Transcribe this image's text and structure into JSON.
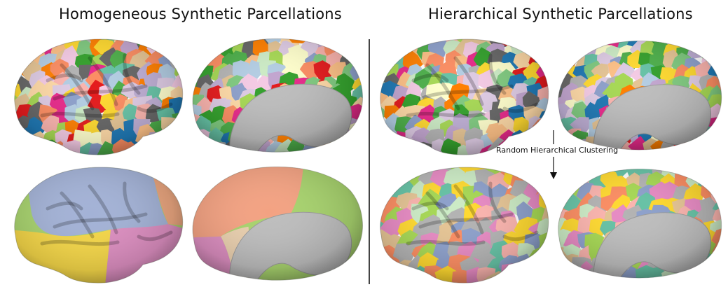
{
  "titles": {
    "left": "Homogeneous Synthetic Parcellations",
    "right": "Hierarchical Synthetic Parcellations"
  },
  "annotation": "Random Hierarchical Clustering",
  "colors": {
    "medial_wall": "#bdbdbd",
    "coarse_blue": "#a3b2d6",
    "coarse_yellow": "#f4d648",
    "coarse_pink": "#dc8ec0",
    "coarse_green": "#a8d36e",
    "coarse_orange": "#f3a282",
    "coarse_beige": "#e9cfae",
    "palette_fine": [
      "#e7298a",
      "#66c2a5",
      "#fc8d62",
      "#8da0cb",
      "#a6d854",
      "#ffd92f",
      "#e5c494",
      "#b3b3b3",
      "#fbb4ae",
      "#b3cde3",
      "#ccebc5",
      "#decbe4",
      "#fed9a6",
      "#ffffcc",
      "#f4cae4",
      "#7fc97f",
      "#beaed4",
      "#fdc086",
      "#666666",
      "#e41a1c",
      "#4daf4a",
      "#ff7f00",
      "#c2a5cf",
      "#33a02c",
      "#1f78b4"
    ],
    "palette_merged": [
      "#a6d854",
      "#e5c494",
      "#fc8d62",
      "#8da0cb",
      "#ffd92f",
      "#e78ac3",
      "#66c2a5",
      "#b3b3b3",
      "#fbb4ae",
      "#ccebc5"
    ]
  },
  "brains": [
    {
      "id": "lh-lateral-fine",
      "view": "lateral",
      "scheme": "fine",
      "seed": 3
    },
    {
      "id": "lh-medial-fine",
      "view": "medial",
      "scheme": "fine",
      "seed": 7
    },
    {
      "id": "lh-lateral-coarse",
      "view": "lateral",
      "scheme": "coarse",
      "seed": 11
    },
    {
      "id": "lh-medial-coarse",
      "view": "medial",
      "scheme": "coarse",
      "seed": 13
    },
    {
      "id": "rh-lateral-fine",
      "view": "lateral",
      "scheme": "fine",
      "seed": 17
    },
    {
      "id": "rh-medial-fine",
      "view": "medial",
      "scheme": "fine",
      "seed": 19
    },
    {
      "id": "rh-lateral-merged",
      "view": "lateral",
      "scheme": "merged",
      "seed": 23
    },
    {
      "id": "rh-medial-merged",
      "view": "medial",
      "scheme": "merged",
      "seed": 29
    }
  ]
}
